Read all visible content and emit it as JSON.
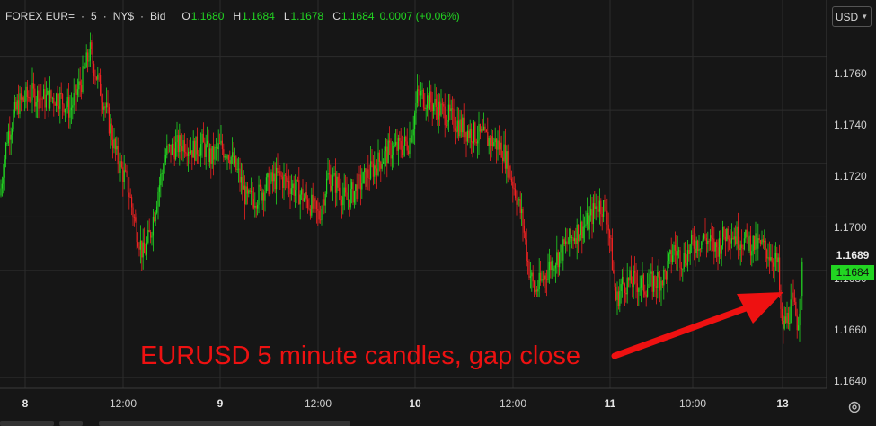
{
  "legend": {
    "symbol": "FOREX EUR=",
    "sep1": "·",
    "interval": "5",
    "sep2": "·",
    "exchange": "NY$",
    "sep3": "·",
    "type": "Bid",
    "open_label": "O",
    "open": "1.1680",
    "high_label": "H",
    "high": "1.1684",
    "low_label": "L",
    "low": "1.1678",
    "close_label": "C",
    "close": "1.1684",
    "change": "0.0007 (+0.06%)"
  },
  "currency_button": {
    "label": "USD",
    "icon": "chevron-down-icon"
  },
  "last_price_tag": "1.1689",
  "bid_price_tag": "1.1684",
  "annotation": "EURUSD 5 minute candles, gap close",
  "settings_icon": "settings-icon",
  "colors": {
    "background": "#161616",
    "up": "#22d522",
    "down": "#ee2222",
    "annotation": "#ee1111",
    "grid": "#2c2c2c"
  },
  "chart_data": {
    "type": "candlestick",
    "series_name": "FOREX EUR=",
    "y_ticks": [
      "1.1760",
      "1.1740",
      "1.1720",
      "1.1700",
      "1.1680",
      "1.1660",
      "1.1640"
    ],
    "x_ticks": [
      "8",
      "12:00",
      "9",
      "12:00",
      "10",
      "12:00",
      "11",
      "10:00",
      "13"
    ],
    "ylim": [
      1.1636,
      1.1781
    ],
    "grid": true,
    "path": [
      [
        0,
        1.1708
      ],
      [
        8,
        1.173
      ],
      [
        20,
        1.1742
      ],
      [
        35,
        1.1746
      ],
      [
        50,
        1.1744
      ],
      [
        65,
        1.1745
      ],
      [
        78,
        1.174
      ],
      [
        92,
        1.1752
      ],
      [
        100,
        1.1762
      ],
      [
        108,
        1.1752
      ],
      [
        118,
        1.174
      ],
      [
        130,
        1.1722
      ],
      [
        142,
        1.1712
      ],
      [
        150,
        1.1698
      ],
      [
        160,
        1.1685
      ],
      [
        168,
        1.1695
      ],
      [
        176,
        1.171
      ],
      [
        185,
        1.1724
      ],
      [
        195,
        1.1726
      ],
      [
        205,
        1.1728
      ],
      [
        215,
        1.1725
      ],
      [
        225,
        1.1727
      ],
      [
        235,
        1.1722
      ],
      [
        245,
        1.1726
      ],
      [
        255,
        1.1724
      ],
      [
        265,
        1.1716
      ],
      [
        275,
        1.1706
      ],
      [
        287,
        1.1708
      ],
      [
        298,
        1.1712
      ],
      [
        310,
        1.1715
      ],
      [
        320,
        1.1713
      ],
      [
        330,
        1.171
      ],
      [
        345,
        1.1705
      ],
      [
        355,
        1.17
      ],
      [
        365,
        1.1715
      ],
      [
        375,
        1.1712
      ],
      [
        385,
        1.1706
      ],
      [
        395,
        1.171
      ],
      [
        405,
        1.1714
      ],
      [
        415,
        1.1718
      ],
      [
        425,
        1.1722
      ],
      [
        435,
        1.1725
      ],
      [
        445,
        1.1726
      ],
      [
        455,
        1.1728
      ],
      [
        460,
        1.1735
      ],
      [
        465,
        1.1746
      ],
      [
        475,
        1.1744
      ],
      [
        490,
        1.174
      ],
      [
        505,
        1.1736
      ],
      [
        520,
        1.1732
      ],
      [
        535,
        1.173
      ],
      [
        550,
        1.1728
      ],
      [
        560,
        1.1725
      ],
      [
        568,
        1.1716
      ],
      [
        575,
        1.1708
      ],
      [
        582,
        1.1698
      ],
      [
        588,
        1.1682
      ],
      [
        595,
        1.1672
      ],
      [
        603,
        1.1676
      ],
      [
        612,
        1.1682
      ],
      [
        625,
        1.1687
      ],
      [
        640,
        1.1694
      ],
      [
        655,
        1.1698
      ],
      [
        665,
        1.1705
      ],
      [
        675,
        1.1703
      ],
      [
        680,
        1.1688
      ],
      [
        686,
        1.1668
      ],
      [
        692,
        1.1675
      ],
      [
        705,
        1.1676
      ],
      [
        718,
        1.1674
      ],
      [
        730,
        1.1676
      ],
      [
        740,
        1.1678
      ],
      [
        750,
        1.1688
      ],
      [
        760,
        1.1684
      ],
      [
        772,
        1.169
      ],
      [
        785,
        1.1692
      ],
      [
        797,
        1.1688
      ],
      [
        810,
        1.1695
      ],
      [
        822,
        1.1692
      ],
      [
        835,
        1.169
      ],
      [
        848,
        1.1689
      ],
      [
        858,
        1.1686
      ],
      [
        866,
        1.1682
      ],
      [
        870,
        1.1658
      ],
      [
        876,
        1.1662
      ],
      [
        882,
        1.1668
      ],
      [
        888,
        1.166
      ],
      [
        893,
        1.168
      ]
    ],
    "annotation_arrow": {
      "label": "gap close"
    }
  }
}
